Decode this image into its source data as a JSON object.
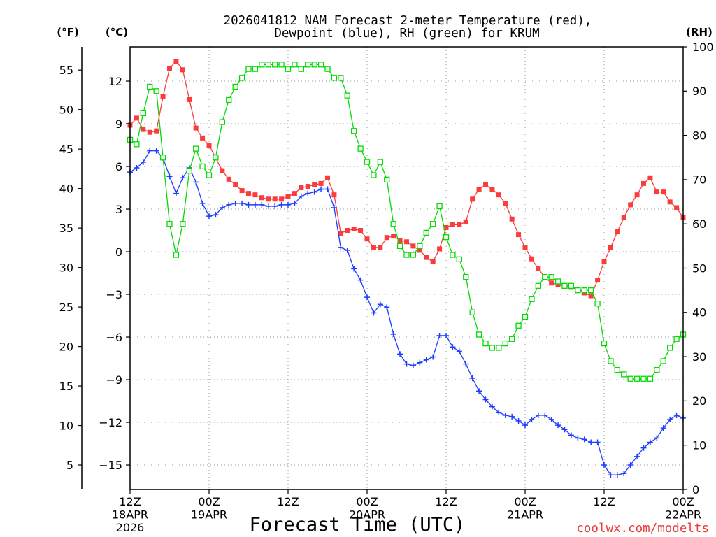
{
  "chart_data": {
    "type": "line",
    "title": "2026041812 NAM Forecast 2-meter Temperature (red),",
    "subtitle": "Dewpoint (blue), RH (green) for KRUM",
    "xlabel": "Forecast Time (UTC)",
    "y_left_outer_label": "(°F)",
    "y_left_label": "(°C)",
    "y_right_label": "(RH)",
    "grid": true,
    "xlim": [
      0,
      84
    ],
    "ylim_c": [
      -16.72,
      14.41
    ],
    "ylim_f": [
      1.9,
      57.9
    ],
    "ylim_rh": [
      0,
      100
    ],
    "x_ticks": [
      {
        "hour": 0,
        "labels": [
          "12Z",
          "18APR",
          "2026"
        ]
      },
      {
        "hour": 12,
        "labels": [
          "00Z",
          "19APR"
        ]
      },
      {
        "hour": 24,
        "labels": [
          "12Z"
        ]
      },
      {
        "hour": 36,
        "labels": [
          "00Z",
          "20APR"
        ]
      },
      {
        "hour": 48,
        "labels": [
          "12Z"
        ]
      },
      {
        "hour": 60,
        "labels": [
          "00Z",
          "21APR"
        ]
      },
      {
        "hour": 72,
        "labels": [
          "12Z"
        ]
      },
      {
        "hour": 84,
        "labels": [
          "00Z",
          "22APR"
        ]
      }
    ],
    "y_ticks_f": [
      55,
      50,
      45,
      40,
      35,
      30,
      25,
      20,
      15,
      10,
      5
    ],
    "y_ticks_c": [
      12,
      9,
      6,
      3,
      0,
      -3,
      -6,
      -9,
      -12,
      -15
    ],
    "y_tick_labels_c": [
      "12",
      "9",
      "6",
      "3",
      "0",
      "−3",
      "−6",
      "−9",
      "−12",
      "−15"
    ],
    "y_ticks_rh": [
      100,
      90,
      80,
      70,
      60,
      50,
      40,
      30,
      20,
      10,
      0
    ],
    "x": [
      0,
      1,
      2,
      3,
      4,
      5,
      6,
      7,
      8,
      9,
      10,
      11,
      12,
      13,
      14,
      15,
      16,
      17,
      18,
      19,
      20,
      21,
      22,
      23,
      24,
      25,
      26,
      27,
      28,
      29,
      30,
      31,
      32,
      33,
      34,
      35,
      36,
      37,
      38,
      39,
      40,
      41,
      42,
      43,
      44,
      45,
      46,
      47,
      48,
      49,
      50,
      51,
      52,
      53,
      54,
      55,
      56,
      57,
      58,
      59,
      60,
      61,
      62,
      63,
      64,
      65,
      66,
      67,
      68,
      69,
      70,
      71,
      72,
      73,
      74,
      75,
      76,
      77,
      78,
      79,
      80,
      81,
      82,
      83,
      84
    ],
    "series": [
      {
        "name": "Temperature",
        "color": "#fa3c3c",
        "right_axis": false,
        "values": [
          8.9,
          9.4,
          8.6,
          8.4,
          8.5,
          10.9,
          12.9,
          13.4,
          12.8,
          10.7,
          8.7,
          8.0,
          7.5,
          6.6,
          5.7,
          5.1,
          4.7,
          4.3,
          4.1,
          4.0,
          3.8,
          3.7,
          3.7,
          3.7,
          3.9,
          4.1,
          4.5,
          4.6,
          4.7,
          4.8,
          5.2,
          4.0,
          1.3,
          1.5,
          1.6,
          1.5,
          0.9,
          0.3,
          0.3,
          1.0,
          1.1,
          0.8,
          0.7,
          0.4,
          0.1,
          -0.4,
          -0.7,
          0.2,
          1.7,
          1.9,
          1.9,
          2.1,
          3.7,
          4.4,
          4.7,
          4.4,
          4.0,
          3.4,
          2.3,
          1.2,
          0.3,
          -0.5,
          -1.2,
          -1.8,
          -2.2,
          -2.3,
          -2.4,
          -2.5,
          -2.7,
          -2.9,
          -3.1,
          -2.0,
          -0.7,
          0.3,
          1.4,
          2.4,
          3.3,
          4.0,
          4.8,
          5.2,
          4.2,
          4.2,
          3.5,
          3.1,
          2.4
        ]
      },
      {
        "name": "Dewpoint",
        "color": "#1e3cff",
        "right_axis": false,
        "values": [
          5.6,
          5.9,
          6.3,
          7.1,
          7.1,
          6.6,
          5.3,
          4.1,
          5.2,
          5.9,
          4.9,
          3.4,
          2.5,
          2.6,
          3.1,
          3.3,
          3.4,
          3.4,
          3.3,
          3.3,
          3.3,
          3.2,
          3.2,
          3.3,
          3.3,
          3.4,
          3.9,
          4.1,
          4.2,
          4.4,
          4.4,
          3.1,
          0.3,
          0.1,
          -1.2,
          -2.0,
          -3.2,
          -4.3,
          -3.7,
          -3.9,
          -5.8,
          -7.2,
          -7.9,
          -8.0,
          -7.8,
          -7.6,
          -7.4,
          -5.9,
          -5.9,
          -6.7,
          -7.0,
          -7.9,
          -8.9,
          -9.8,
          -10.4,
          -10.9,
          -11.3,
          -11.5,
          -11.6,
          -11.9,
          -12.2,
          -11.8,
          -11.5,
          -11.5,
          -11.8,
          -12.2,
          -12.5,
          -12.9,
          -13.1,
          -13.2,
          -13.4,
          -13.4,
          -15.0,
          -15.7,
          -15.7,
          -15.6,
          -15.0,
          -14.4,
          -13.8,
          -13.4,
          -13.1,
          -12.4,
          -11.8,
          -11.5,
          -11.7
        ]
      },
      {
        "name": "RH",
        "color": "#00dc00",
        "right_axis": true,
        "values": [
          79,
          78,
          85,
          91,
          90,
          75,
          60,
          53,
          60,
          72,
          77,
          73,
          71,
          75,
          83,
          88,
          91,
          93,
          95,
          95,
          96,
          96,
          96,
          96,
          95,
          96,
          95,
          96,
          96,
          96,
          95,
          93,
          93,
          89,
          81,
          77,
          74,
          71,
          74,
          70,
          60,
          55,
          53,
          53,
          55,
          58,
          60,
          64,
          57,
          53,
          52,
          48,
          40,
          35,
          33,
          32,
          32,
          33,
          34,
          37,
          39,
          43,
          46,
          48,
          48,
          47,
          46,
          46,
          45,
          45,
          45,
          42,
          33,
          29,
          27,
          26,
          25,
          25,
          25,
          25,
          27,
          29,
          32,
          34,
          35
        ]
      }
    ]
  },
  "footer": {
    "credit": "coolwx.com/modelts"
  }
}
